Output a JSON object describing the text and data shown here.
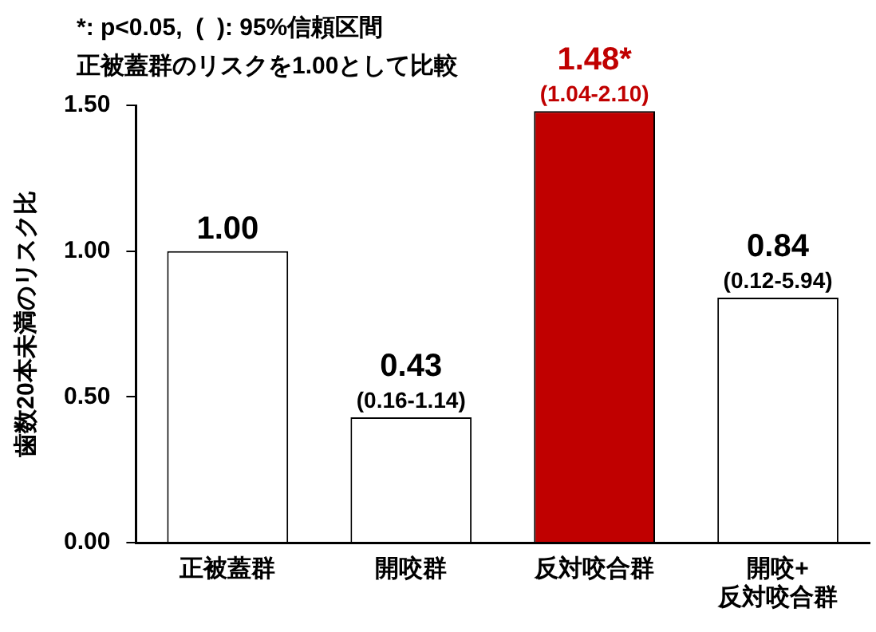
{
  "chart_data": {
    "type": "bar",
    "ylabel": "歯数20本未満のリスク比",
    "categories": [
      "正被蓋群",
      "開咬群",
      "反対咬合群",
      "開咬+\n反対咬合群"
    ],
    "values": [
      1.0,
      0.43,
      1.48,
      0.84
    ],
    "colors": [
      "#ffffff",
      "#ffffff",
      "#c00000",
      "#ffffff"
    ],
    "value_labels": [
      "1.00",
      "0.43",
      "1.48*",
      "0.84"
    ],
    "ylim": [
      0,
      1.5
    ],
    "yticks": [
      {
        "value": 0,
        "label": "0.00"
      },
      {
        "value": 0.5,
        "label": "0.50"
      },
      {
        "value": 1,
        "label": "1.00"
      },
      {
        "value": 1.5,
        "label": "1.50"
      }
    ],
    "grid": false,
    "legend": false,
    "annotations": [
      "*: p<0.05,  (  ): 95%信頼区間",
      "正被蓋群のリスクを1.00として比較",
      {
        "text": "(0.16-1.14)",
        "x": "開咬群",
        "y": 0.43
      },
      {
        "text": "(1.04-2.10)",
        "x": "反対咬合群",
        "y": 1.48
      },
      {
        "text": "(0.12-5.94)",
        "x": "開咬+\n反対咬合群",
        "y": 0.84
      }
    ]
  }
}
